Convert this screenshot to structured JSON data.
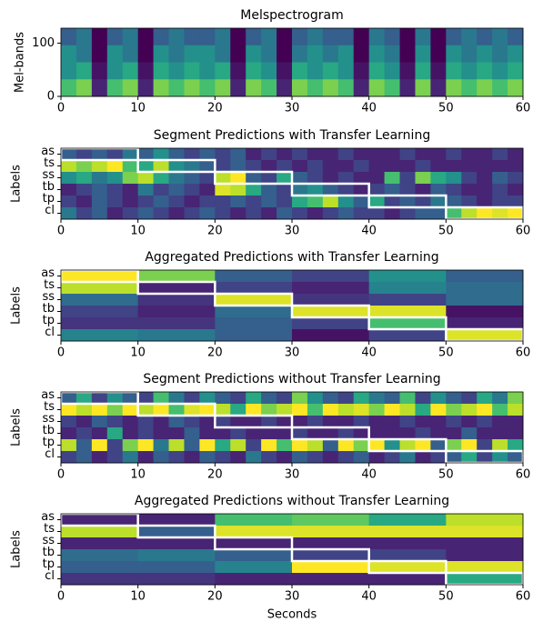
{
  "chart_data": [
    {
      "type": "heatmap",
      "title": "Melspectrogram",
      "ylabel": "Mel-bands",
      "xlim": [
        0,
        60
      ],
      "xticks": [
        0,
        10,
        20,
        30,
        40,
        50,
        60
      ],
      "ylim": [
        0,
        128
      ],
      "yticks": [
        0,
        100
      ],
      "values": [
        [
          0.3,
          0.4,
          0,
          0.3,
          0.4,
          0,
          0.3,
          0.4,
          0.3,
          0.3,
          0.4,
          0,
          0.3,
          0.4,
          0,
          0.3,
          0.4,
          0.3,
          0.3,
          0,
          0.4,
          0.3,
          0,
          0.4,
          0,
          0.3,
          0.4,
          0.3,
          0.4,
          0.3
        ],
        [
          0.5,
          0.4,
          0,
          0.5,
          0.4,
          0,
          0.5,
          0.4,
          0.5,
          0.5,
          0.4,
          0,
          0.5,
          0.4,
          0,
          0.4,
          0.5,
          0.4,
          0.5,
          0,
          0.5,
          0.4,
          0,
          0.5,
          0,
          0.5,
          0.4,
          0.5,
          0.4,
          0.5
        ],
        [
          0.5,
          0.6,
          0.05,
          0.5,
          0.6,
          0.05,
          0.6,
          0.5,
          0.6,
          0.5,
          0.6,
          0.05,
          0.6,
          0.5,
          0.05,
          0.6,
          0.5,
          0.6,
          0.5,
          0.05,
          0.6,
          0.5,
          0.05,
          0.6,
          0.05,
          0.6,
          0.5,
          0.6,
          0.5,
          0.6
        ],
        [
          0.7,
          0.8,
          0.1,
          0.7,
          0.8,
          0.1,
          0.8,
          0.7,
          0.8,
          0.7,
          0.8,
          0.1,
          0.8,
          0.7,
          0.1,
          0.8,
          0.7,
          0.8,
          0.7,
          0.1,
          0.8,
          0.7,
          0.1,
          0.8,
          0.1,
          0.8,
          0.7,
          0.8,
          0.7,
          0.8
        ]
      ]
    },
    {
      "type": "heatmap",
      "title": "Segment Predictions with Transfer Learning",
      "ylabel": "Labels",
      "xlim": [
        0,
        60
      ],
      "xticks": [
        0,
        10,
        20,
        30,
        40,
        50,
        60
      ],
      "y_categories": [
        "as",
        "ts",
        "ss",
        "tb",
        "tp",
        "cl"
      ],
      "ground_truth": [
        0,
        1,
        2,
        3,
        4,
        5
      ],
      "values": [
        [
          0.3,
          0.2,
          0.3,
          0.2,
          0.4,
          0.3,
          0.5,
          0.3,
          0.2,
          0.3,
          0.2,
          0.3,
          0.1,
          0.2,
          0.1,
          0.2,
          0.1,
          0.1,
          0.2,
          0.1,
          0.1,
          0.1,
          0.2,
          0.1,
          0.1,
          0.2,
          0.1,
          0.1,
          0.2,
          0.1
        ],
        [
          0.9,
          0.8,
          0.9,
          1.0,
          0.7,
          0.6,
          0.9,
          0.5,
          0.4,
          0.3,
          0.2,
          0.3,
          0.2,
          0.1,
          0.2,
          0.1,
          0.2,
          0.1,
          0.1,
          0.2,
          0.1,
          0.1,
          0.1,
          0.2,
          0.1,
          0.1,
          0.1,
          0.1,
          0.1,
          0.1
        ],
        [
          0.5,
          0.6,
          0.4,
          0.5,
          0.8,
          0.9,
          0.6,
          0.4,
          0.3,
          0.2,
          0.9,
          1.0,
          0.3,
          0.2,
          0.6,
          0.3,
          0.2,
          0.1,
          0.2,
          0.1,
          0.1,
          0.7,
          0.2,
          0.8,
          0.6,
          0.5,
          0.2,
          0.1,
          0.3,
          0.2
        ],
        [
          0.1,
          0.2,
          0.3,
          0.2,
          0.1,
          0.4,
          0.2,
          0.3,
          0.2,
          0.1,
          0.95,
          0.9,
          0.6,
          0.3,
          0.2,
          0.4,
          0.5,
          0.3,
          0.2,
          0.1,
          0.2,
          0.3,
          0.2,
          0.1,
          0.3,
          0.2,
          0.1,
          0.1,
          0.2,
          0.1
        ],
        [
          0.2,
          0.1,
          0.3,
          0.2,
          0.1,
          0.2,
          0.3,
          0.2,
          0.1,
          0.2,
          0.2,
          0.3,
          0.2,
          0.3,
          0.2,
          0.6,
          0.7,
          0.9,
          0.5,
          0.3,
          0.6,
          0.2,
          0.3,
          0.2,
          0.4,
          0.3,
          0.2,
          0.1,
          0.2,
          0.2
        ],
        [
          0.4,
          0.2,
          0.3,
          0.1,
          0.2,
          0.3,
          0.2,
          0.1,
          0.2,
          0.3,
          0.2,
          0.1,
          0.2,
          0.1,
          0.3,
          0.2,
          0.1,
          0.2,
          0.3,
          0.2,
          0.2,
          0.1,
          0.2,
          0.3,
          0.3,
          0.7,
          0.9,
          1.0,
          0.95,
          1.0
        ]
      ]
    },
    {
      "type": "heatmap",
      "title": "Aggregated Predictions with Transfer Learning",
      "ylabel": "Labels",
      "xlim": [
        0,
        60
      ],
      "xticks": [
        0,
        10,
        20,
        30,
        40,
        50,
        60
      ],
      "y_categories": [
        "as",
        "ts",
        "ss",
        "tb",
        "tp",
        "cl"
      ],
      "ground_truth": [
        0,
        1,
        2,
        3,
        4,
        5
      ],
      "values": [
        [
          1.0,
          0.8,
          0.3,
          0.2,
          0.5,
          0.3
        ],
        [
          0.9,
          0.1,
          0.2,
          0.1,
          0.45,
          0.35
        ],
        [
          0.35,
          0.15,
          0.95,
          0.15,
          0.2,
          0.35
        ],
        [
          0.2,
          0.1,
          0.35,
          0.95,
          0.95,
          0.05
        ],
        [
          0.15,
          0.15,
          0.3,
          0.2,
          0.7,
          0.1
        ],
        [
          0.45,
          0.4,
          0.3,
          0.05,
          0.2,
          0.95
        ]
      ]
    },
    {
      "type": "heatmap",
      "title": "Segment Predictions without Transfer Learning",
      "ylabel": "Labels",
      "xlim": [
        0,
        60
      ],
      "xticks": [
        0,
        10,
        20,
        30,
        40,
        50,
        60
      ],
      "y_categories": [
        "as",
        "ts",
        "ss",
        "tb",
        "tp",
        "cl"
      ],
      "ground_truth": [
        0,
        1,
        2,
        3,
        4,
        5
      ],
      "values": [
        [
          0.3,
          0.6,
          0.2,
          0.5,
          0.3,
          0.2,
          0.7,
          0.4,
          0.2,
          0.5,
          0.3,
          0.2,
          0.6,
          0.3,
          0.2,
          0.8,
          0.5,
          0.3,
          0.2,
          0.6,
          0.4,
          0.3,
          0.7,
          0.2,
          0.5,
          0.3,
          0.2,
          0.6,
          0.4,
          0.8
        ],
        [
          1.0,
          0.9,
          1.0,
          0.8,
          1.0,
          0.9,
          1.0,
          0.7,
          0.95,
          1.0,
          0.9,
          0.6,
          1.0,
          0.8,
          0.9,
          1.0,
          0.7,
          1.0,
          0.9,
          0.95,
          0.8,
          1.0,
          0.9,
          0.6,
          1.0,
          0.8,
          0.9,
          1.0,
          0.7,
          0.9
        ],
        [
          0.2,
          0.1,
          0.3,
          0.2,
          0.1,
          0.2,
          0.1,
          0.3,
          0.2,
          0.1,
          0.2,
          0.1,
          0.1,
          0.2,
          0.1,
          0.1,
          0.2,
          0.1,
          0.1,
          0.2,
          0.1,
          0.1,
          0.2,
          0.1,
          0.1,
          0.2,
          0.1,
          0.2,
          0.1,
          0.1
        ],
        [
          0.1,
          0.2,
          0.1,
          0.6,
          0.1,
          0.2,
          0.1,
          0.1,
          0.3,
          0.1,
          0.1,
          0.2,
          0.1,
          0.1,
          0.1,
          0.2,
          0.1,
          0.1,
          0.2,
          0.1,
          0.1,
          0.1,
          0.1,
          0.2,
          0.1,
          0.1,
          0.3,
          0.1,
          0.1,
          0.1
        ],
        [
          0.9,
          0.3,
          1.0,
          0.2,
          0.8,
          1.0,
          0.4,
          0.9,
          0.3,
          1.0,
          0.6,
          0.9,
          0.2,
          1.0,
          0.7,
          1.0,
          0.9,
          0.3,
          1.0,
          0.8,
          1.0,
          0.5,
          0.9,
          1.0,
          0.3,
          0.8,
          1.0,
          0.2,
          0.9,
          0.6
        ],
        [
          0.2,
          0.3,
          0.1,
          0.2,
          0.4,
          0.1,
          0.3,
          0.2,
          0.1,
          0.3,
          0.2,
          0.1,
          0.4,
          0.2,
          0.1,
          0.3,
          0.2,
          0.1,
          0.2,
          0.3,
          0.1,
          0.2,
          0.4,
          0.1,
          0.2,
          0.3,
          0.6,
          0.2,
          0.5,
          0.3
        ]
      ]
    },
    {
      "type": "heatmap",
      "title": "Aggregated Predictions without Transfer Learning",
      "ylabel": "Labels",
      "xlabel": "Seconds",
      "xlim": [
        0,
        60
      ],
      "xticks": [
        0,
        10,
        20,
        30,
        40,
        50,
        60
      ],
      "y_categories": [
        "as",
        "ts",
        "ss",
        "tb",
        "tp",
        "cl"
      ],
      "ground_truth": [
        0,
        1,
        2,
        3,
        4,
        5
      ],
      "values": [
        [
          0.1,
          0.1,
          0.7,
          0.75,
          0.6,
          0.9
        ],
        [
          0.9,
          0.3,
          0.95,
          0.95,
          0.95,
          0.95
        ],
        [
          0.1,
          0.1,
          0.1,
          0.1,
          0.1,
          0.1
        ],
        [
          0.35,
          0.4,
          0.3,
          0.2,
          0.2,
          0.1
        ],
        [
          0.3,
          0.3,
          0.45,
          1.0,
          0.95,
          0.95
        ],
        [
          0.15,
          0.15,
          0.1,
          0.1,
          0.1,
          0.6
        ]
      ]
    }
  ]
}
